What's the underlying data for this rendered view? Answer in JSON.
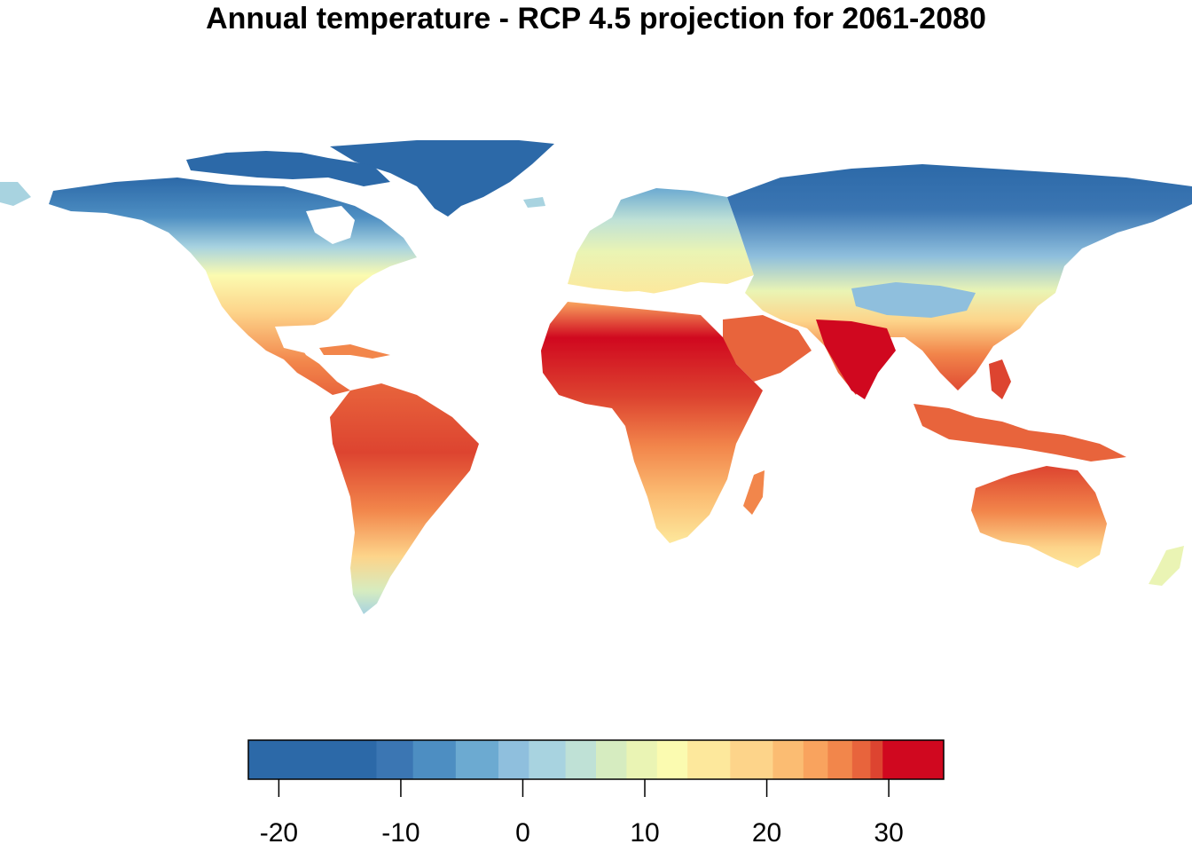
{
  "title": "Annual temperature - RCP 4.5 projection for 2061-2080",
  "legend": {
    "min": -22.5,
    "max": 34.5,
    "bins": [
      {
        "from": -22.5,
        "to": -12.0,
        "color": "#2c69a8"
      },
      {
        "from": -12.0,
        "to": -9.0,
        "color": "#3b76b3"
      },
      {
        "from": -9.0,
        "to": -5.5,
        "color": "#4d8ec2"
      },
      {
        "from": -5.5,
        "to": -2.0,
        "color": "#6caad1"
      },
      {
        "from": -2.0,
        "to": 0.5,
        "color": "#8fbfdd"
      },
      {
        "from": 0.5,
        "to": 3.5,
        "color": "#a8d3e0"
      },
      {
        "from": 3.5,
        "to": 6.0,
        "color": "#bfe1d6"
      },
      {
        "from": 6.0,
        "to": 8.5,
        "color": "#d6ecc0"
      },
      {
        "from": 8.5,
        "to": 11.0,
        "color": "#eaf4b4"
      },
      {
        "from": 11.0,
        "to": 13.5,
        "color": "#fbfbb0"
      },
      {
        "from": 13.5,
        "to": 17.0,
        "color": "#fde89c"
      },
      {
        "from": 17.0,
        "to": 20.5,
        "color": "#fdd48a"
      },
      {
        "from": 20.5,
        "to": 23.0,
        "color": "#fbbc72"
      },
      {
        "from": 23.0,
        "to": 25.0,
        "color": "#f9a35e"
      },
      {
        "from": 25.0,
        "to": 27.0,
        "color": "#f2864b"
      },
      {
        "from": 27.0,
        "to": 28.5,
        "color": "#e8643c"
      },
      {
        "from": 28.5,
        "to": 29.5,
        "color": "#dd4430"
      },
      {
        "from": 29.5,
        "to": 34.5,
        "color": "#d0081f"
      }
    ],
    "ticks": [
      {
        "value": -20,
        "label": "-20"
      },
      {
        "value": -10,
        "label": "-10"
      },
      {
        "value": 0,
        "label": "0"
      },
      {
        "value": 10,
        "label": "10"
      },
      {
        "value": 20,
        "label": "20"
      },
      {
        "value": 30,
        "label": "30"
      }
    ]
  }
}
